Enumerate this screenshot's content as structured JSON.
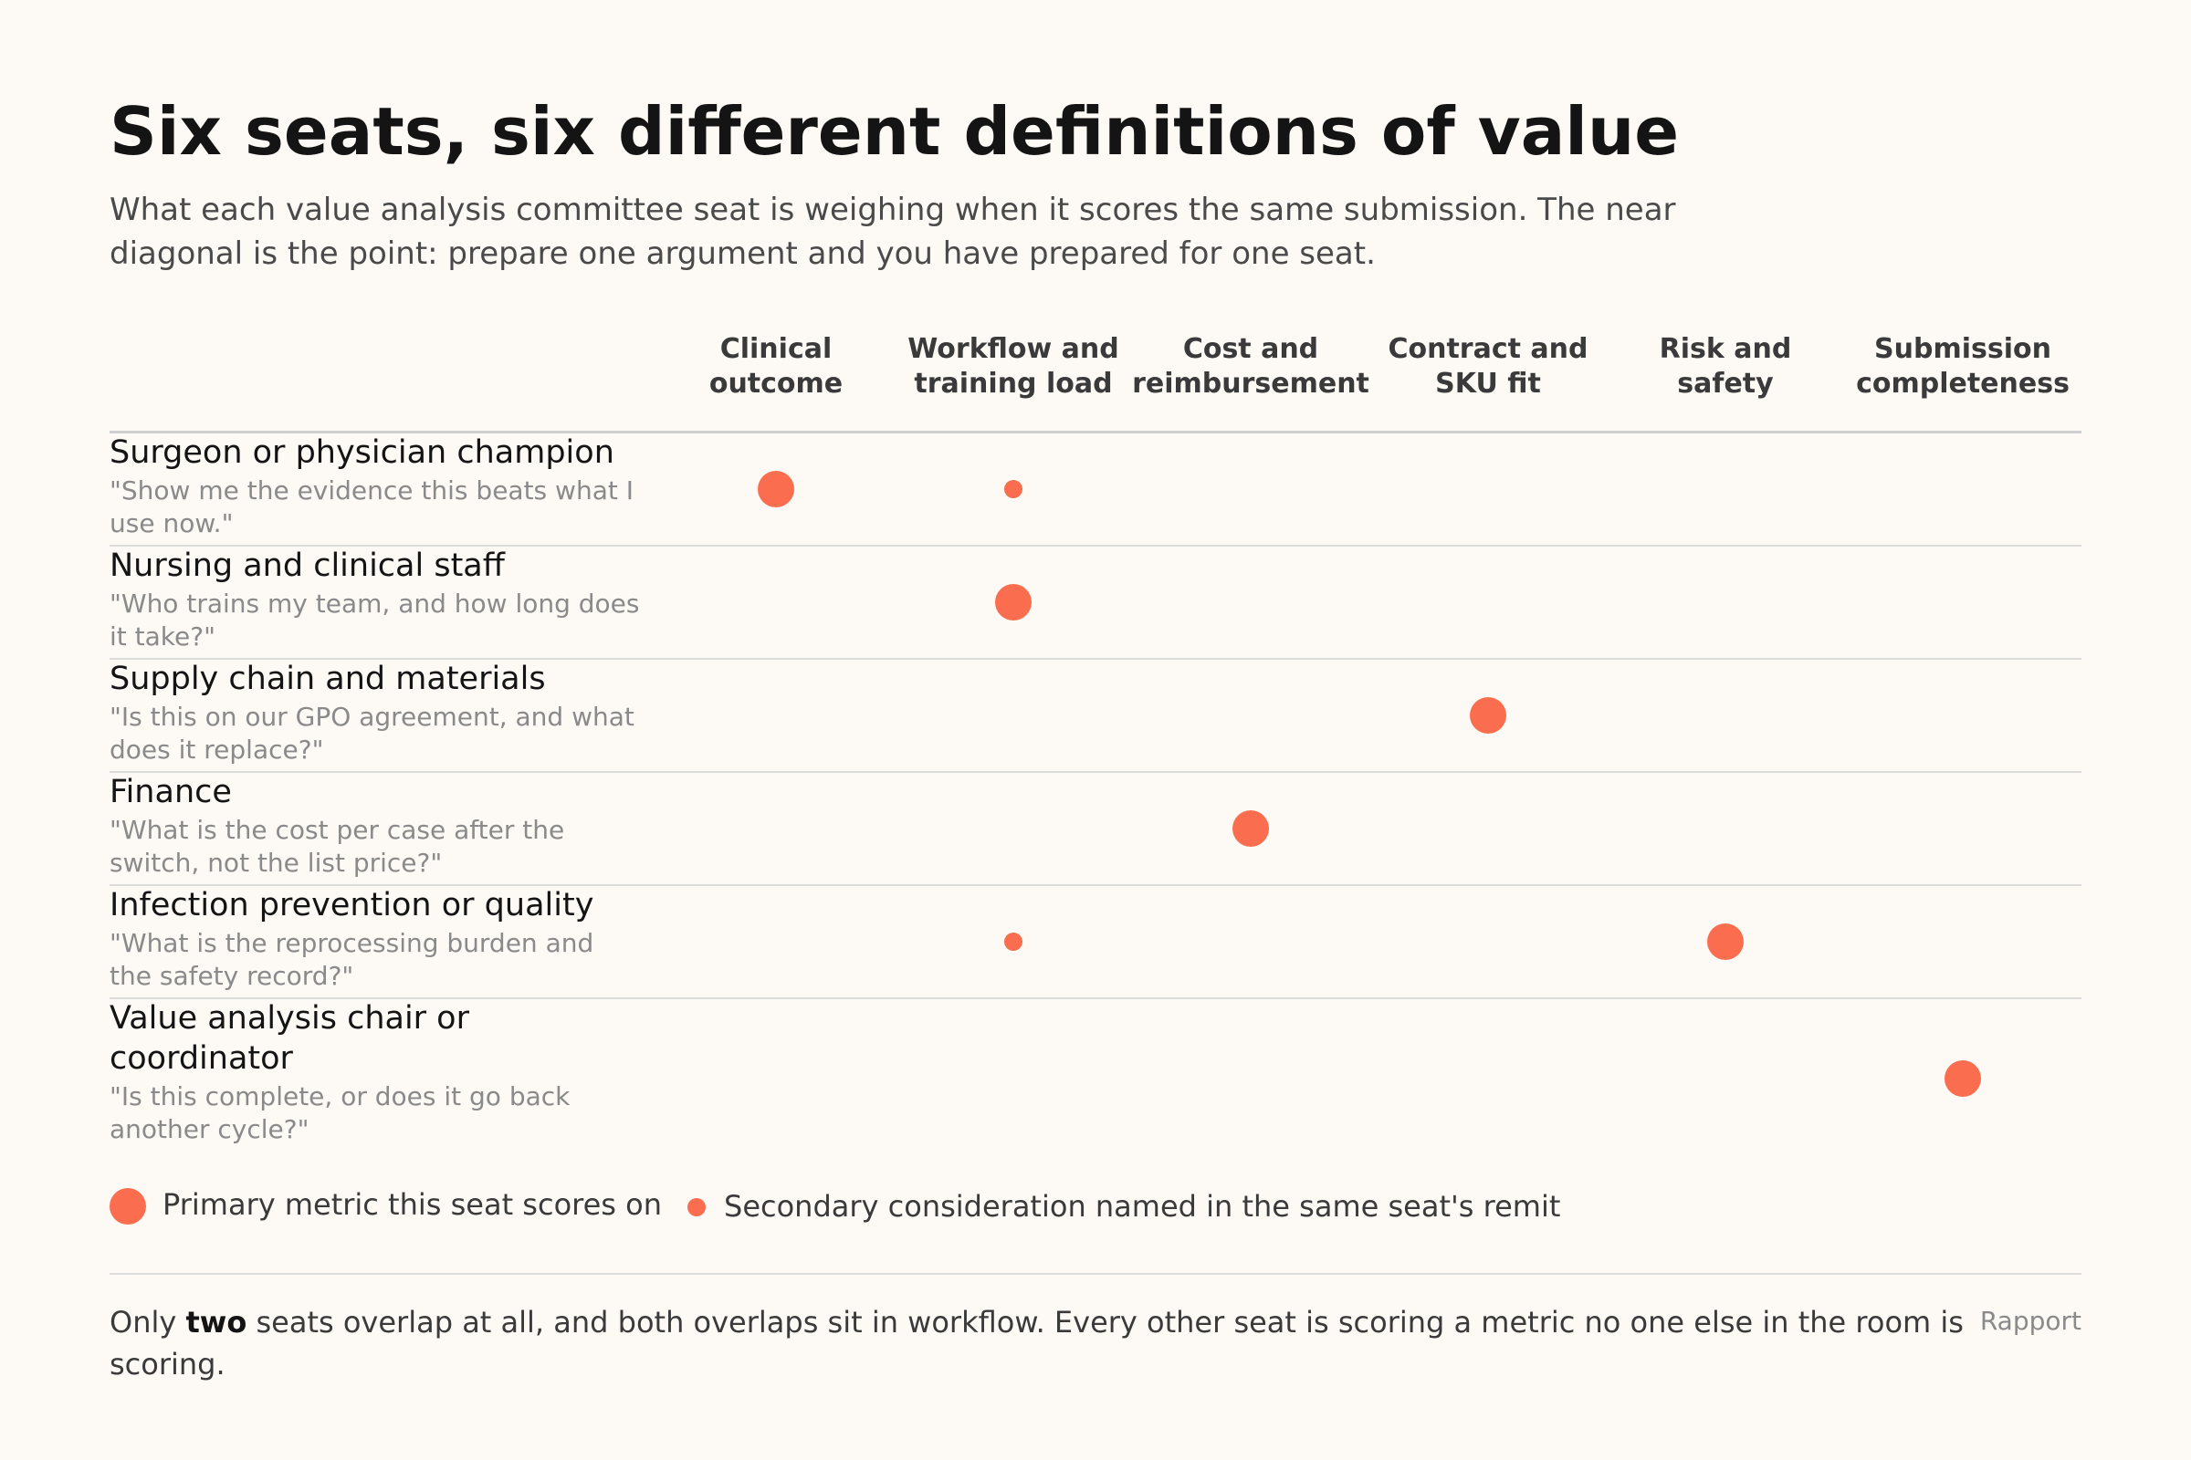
{
  "title": "Six seats, six different definitions of value",
  "subtitle": "What each value analysis committee seat is weighing when it scores the same submission. The near diagonal is the point: prepare one argument and you have prepared for one seat.",
  "columns": [
    {
      "lines": [
        "Clinical",
        "outcome"
      ]
    },
    {
      "lines": [
        "Workflow and",
        "training load"
      ]
    },
    {
      "lines": [
        "Cost and",
        "reimbursement"
      ]
    },
    {
      "lines": [
        "Contract and",
        "SKU fit"
      ]
    },
    {
      "lines": [
        "Risk and",
        "safety"
      ]
    },
    {
      "lines": [
        "Submission",
        "completeness"
      ]
    }
  ],
  "seats": [
    {
      "name": [
        "Surgeon or physician champion"
      ],
      "quote": [
        "\"Show me the evidence this beats what I",
        "use now.\""
      ]
    },
    {
      "name": [
        "Nursing and clinical staff"
      ],
      "quote": [
        "\"Who trains my team, and how long does",
        "it take?\""
      ]
    },
    {
      "name": [
        "Supply chain and materials"
      ],
      "quote": [
        "\"Is this on our GPO agreement, and what",
        "does it replace?\""
      ]
    },
    {
      "name": [
        "Finance"
      ],
      "quote": [
        "\"What is the cost per case after the",
        "switch, not the list price?\""
      ]
    },
    {
      "name": [
        "Infection prevention or quality"
      ],
      "quote": [
        "\"What is the reprocessing burden and",
        "the safety record?\""
      ]
    },
    {
      "name": [
        "Value analysis chair or",
        "coordinator"
      ],
      "quote": [
        "\"Is this complete, or does it go back",
        "another cycle?\""
      ]
    }
  ],
  "legend": {
    "primary": "Primary metric this seat scores on",
    "secondary": "Secondary consideration named in the same seat's remit"
  },
  "footnote": {
    "line1_before": "Only ",
    "line1_bold": "two",
    "line1_after": " seats overlap at all, and both overlaps sit in workflow. Every other seat is scoring a metric no one else in the room is",
    "line2": "scoring."
  },
  "brand": "Rapport",
  "colors": {
    "accent": "#fa6e4f",
    "background": "#fdf9f5"
  },
  "chart_data": {
    "type": "heatmap",
    "encoding": "dot size: primary = large dot, secondary = small dot",
    "rows": [
      "Surgeon or physician champion",
      "Nursing and clinical staff",
      "Supply chain and materials",
      "Finance",
      "Infection prevention or quality",
      "Value analysis chair or coordinator"
    ],
    "columns": [
      "Clinical outcome",
      "Workflow and training load",
      "Cost and reimbursement",
      "Contract and SKU fit",
      "Risk and safety",
      "Submission completeness"
    ],
    "cells": [
      {
        "row": "Surgeon or physician champion",
        "column": "Clinical outcome",
        "level": "primary"
      },
      {
        "row": "Surgeon or physician champion",
        "column": "Workflow and training load",
        "level": "secondary"
      },
      {
        "row": "Nursing and clinical staff",
        "column": "Workflow and training load",
        "level": "primary"
      },
      {
        "row": "Supply chain and materials",
        "column": "Contract and SKU fit",
        "level": "primary"
      },
      {
        "row": "Finance",
        "column": "Cost and reimbursement",
        "level": "primary"
      },
      {
        "row": "Infection prevention or quality",
        "column": "Workflow and training load",
        "level": "secondary"
      },
      {
        "row": "Infection prevention or quality",
        "column": "Risk and safety",
        "level": "primary"
      },
      {
        "row": "Value analysis chair or coordinator",
        "column": "Submission completeness",
        "level": "primary"
      }
    ]
  }
}
